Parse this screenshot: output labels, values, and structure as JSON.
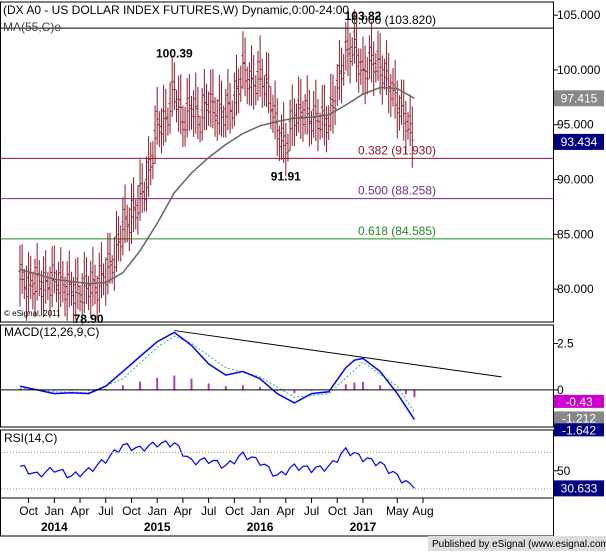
{
  "header": {
    "title": "(DX A0 - US DOLLAR INDEX FUTURES,W) Dynamic,0:00-24:00",
    "ma_label": "MA(55,C)e"
  },
  "colors": {
    "price_bars": "#8b1a2b",
    "ma_line": "#666666",
    "macd_line": "#0000ff",
    "signal_line": "#33aaaa",
    "histogram": "#aa44aa",
    "fib_0": "#000000",
    "fib_382": "#8b1a2b",
    "fib_500": "#7a2a8a",
    "fib_618": "#228b22",
    "rsi_line": "#0000ff",
    "trendline": "#000000"
  },
  "chart_data": [
    {
      "type": "ohlc",
      "name": "price",
      "series": [
        {
          "name": "DX A0 - US DOLLAR INDEX FUTURES",
          "points": [
            [
              "2013-09",
              81.2
            ],
            [
              "2013-10",
              80.2
            ],
            [
              "2013-11",
              80.8
            ],
            [
              "2013-12",
              80.2
            ],
            [
              "2014-01",
              81.0
            ],
            [
              "2014-02",
              80.2
            ],
            [
              "2014-03",
              80.0
            ],
            [
              "2014-04",
              79.6
            ],
            [
              "2014-05",
              80.4
            ],
            [
              "2014-06",
              80.2
            ],
            [
              "2014-07",
              81.5
            ],
            [
              "2014-08",
              82.8
            ],
            [
              "2014-09",
              85.8
            ],
            [
              "2014-10",
              86.5
            ],
            [
              "2014-11",
              88.3
            ],
            [
              "2014-12",
              90.3
            ],
            [
              "2015-01",
              95.0
            ],
            [
              "2015-02",
              95.3
            ],
            [
              "2015-03",
              98.4
            ],
            [
              "2015-04",
              95.2
            ],
            [
              "2015-05",
              96.8
            ],
            [
              "2015-06",
              95.5
            ],
            [
              "2015-07",
              97.3
            ],
            [
              "2015-08",
              96.0
            ],
            [
              "2015-09",
              96.2
            ],
            [
              "2015-10",
              97.0
            ],
            [
              "2015-11",
              100.2
            ],
            [
              "2015-12",
              98.6
            ],
            [
              "2016-01",
              99.5
            ],
            [
              "2016-02",
              98.2
            ],
            [
              "2016-03",
              94.6
            ],
            [
              "2016-04",
              93.0
            ],
            [
              "2016-05",
              95.9
            ],
            [
              "2016-06",
              96.2
            ],
            [
              "2016-07",
              95.6
            ],
            [
              "2016-08",
              95.5
            ],
            [
              "2016-09",
              95.4
            ],
            [
              "2016-10",
              98.4
            ],
            [
              "2016-11",
              101.5
            ],
            [
              "2016-12",
              102.2
            ],
            [
              "2017-01",
              99.5
            ],
            [
              "2017-02",
              101.0
            ],
            [
              "2017-03",
              100.3
            ],
            [
              "2017-04",
              99.0
            ],
            [
              "2017-05",
              97.0
            ],
            [
              "2017-06",
              95.6
            ],
            [
              "2017-07",
              93.4
            ]
          ]
        },
        {
          "name": "MA(55,C)e",
          "points": [
            [
              "2013-09",
              81.8
            ],
            [
              "2014-01",
              80.9
            ],
            [
              "2014-05",
              80.5
            ],
            [
              "2014-07",
              80.6
            ],
            [
              "2014-09",
              81.5
            ],
            [
              "2014-11",
              83.5
            ],
            [
              "2015-01",
              86.0
            ],
            [
              "2015-03",
              88.8
            ],
            [
              "2015-05",
              90.6
            ],
            [
              "2015-07",
              92.0
            ],
            [
              "2015-09",
              93.2
            ],
            [
              "2015-11",
              94.2
            ],
            [
              "2016-01",
              94.9
            ],
            [
              "2016-03",
              95.3
            ],
            [
              "2016-05",
              95.6
            ],
            [
              "2016-07",
              95.7
            ],
            [
              "2016-09",
              95.9
            ],
            [
              "2016-11",
              96.8
            ],
            [
              "2017-01",
              97.8
            ],
            [
              "2017-03",
              98.4
            ],
            [
              "2017-05",
              98.3
            ],
            [
              "2017-07",
              97.4
            ]
          ]
        }
      ],
      "ylim": [
        77.0,
        106.2
      ],
      "y_ticks": [
        80.0,
        85.0,
        90.0,
        95.0,
        100.0,
        105.0
      ],
      "y_tick_labels": [
        "80.000",
        "85.000",
        "90.000",
        "95.000",
        "100.000",
        "105.000"
      ],
      "last_values": {
        "ma": "97.415",
        "close": "93.434"
      },
      "fib_levels": [
        {
          "label": "0.000 (103.820)",
          "value": 103.82,
          "color": "#000000"
        },
        {
          "label": "0.382 (91.930)",
          "value": 91.93,
          "color": "#8b1a2b"
        },
        {
          "label": "0.500 (88.258)",
          "value": 88.258,
          "color": "#7a2a8a"
        },
        {
          "label": "0.618 (84.585)",
          "value": 84.585,
          "color": "#228b22"
        }
      ],
      "annotations": [
        {
          "text": "100.39",
          "x": "2015-03",
          "y": 100.39
        },
        {
          "text": "103.82",
          "x": "2017-01",
          "y": 103.82
        },
        {
          "text": "91.91",
          "x": "2016-04",
          "y": 91.91
        },
        {
          "text": "78.90",
          "x": "2014-05",
          "y": 78.9
        }
      ],
      "credit": "© eSignal, 2011"
    },
    {
      "type": "line",
      "name": "MACD(12,26,9,C)",
      "series": [
        {
          "name": "MACD",
          "points": [
            [
              "2013-09",
              0.2
            ],
            [
              "2013-11",
              0.0
            ],
            [
              "2014-01",
              -0.2
            ],
            [
              "2014-03",
              -0.15
            ],
            [
              "2014-05",
              -0.2
            ],
            [
              "2014-07",
              0.2
            ],
            [
              "2014-09",
              1.0
            ],
            [
              "2014-11",
              1.8
            ],
            [
              "2015-01",
              2.6
            ],
            [
              "2015-03",
              3.1
            ],
            [
              "2015-05",
              2.4
            ],
            [
              "2015-07",
              1.4
            ],
            [
              "2015-09",
              0.8
            ],
            [
              "2015-11",
              1.0
            ],
            [
              "2016-01",
              0.6
            ],
            [
              "2016-03",
              -0.2
            ],
            [
              "2016-05",
              -0.7
            ],
            [
              "2016-07",
              -0.2
            ],
            [
              "2016-09",
              -0.1
            ],
            [
              "2016-11",
              1.2
            ],
            [
              "2016-12",
              1.6
            ],
            [
              "2017-01",
              1.7
            ],
            [
              "2017-03",
              1.0
            ],
            [
              "2017-05",
              -0.2
            ],
            [
              "2017-06",
              -0.9
            ],
            [
              "2017-07",
              -1.6
            ]
          ]
        },
        {
          "name": "Signal",
          "points": [
            [
              "2013-09",
              0.1
            ],
            [
              "2014-01",
              -0.1
            ],
            [
              "2014-05",
              -0.15
            ],
            [
              "2014-09",
              0.6
            ],
            [
              "2015-01",
              2.3
            ],
            [
              "2015-03",
              2.9
            ],
            [
              "2015-05",
              2.5
            ],
            [
              "2015-09",
              1.2
            ],
            [
              "2016-01",
              0.7
            ],
            [
              "2016-05",
              -0.4
            ],
            [
              "2016-09",
              -0.2
            ],
            [
              "2017-01",
              1.5
            ],
            [
              "2017-05",
              0.2
            ],
            [
              "2017-07",
              -1.2
            ]
          ]
        }
      ],
      "ylim": [
        -2.0,
        3.5
      ],
      "y_ticks": [
        0,
        2.5
      ],
      "y_tick_labels": [
        "0",
        "2.5"
      ],
      "trendline": {
        "start": [
          "2015-03",
          3.2
        ],
        "end": [
          "2017-09",
          0.7
        ]
      },
      "last_values": {
        "histogram": "-0.43",
        "signal": "-1.212",
        "macd": "-1.642"
      }
    },
    {
      "type": "line",
      "name": "RSI(14,C)",
      "series": [
        {
          "name": "RSI",
          "points": [
            [
              "2013-09",
              55
            ],
            [
              "2013-11",
              45
            ],
            [
              "2014-01",
              52
            ],
            [
              "2014-03",
              44
            ],
            [
              "2014-05",
              50
            ],
            [
              "2014-07",
              62
            ],
            [
              "2014-09",
              78
            ],
            [
              "2014-11",
              74
            ],
            [
              "2015-01",
              80
            ],
            [
              "2015-03",
              80
            ],
            [
              "2015-05",
              60
            ],
            [
              "2015-07",
              62
            ],
            [
              "2015-09",
              55
            ],
            [
              "2015-11",
              68
            ],
            [
              "2016-01",
              60
            ],
            [
              "2016-03",
              44
            ],
            [
              "2016-05",
              55
            ],
            [
              "2016-07",
              52
            ],
            [
              "2016-09",
              54
            ],
            [
              "2016-11",
              73
            ],
            [
              "2017-01",
              64
            ],
            [
              "2017-03",
              58
            ],
            [
              "2017-05",
              44
            ],
            [
              "2017-07",
              30.6
            ]
          ]
        }
      ],
      "ylim": [
        20,
        95
      ],
      "y_ticks": [
        50
      ],
      "y_tick_labels": [
        "50"
      ],
      "last_values": {
        "rsi": "30.633"
      }
    }
  ],
  "x_axis": {
    "months": [
      {
        "label": "Oct",
        "x": "2013-10"
      },
      {
        "label": "Jan",
        "x": "2014-01"
      },
      {
        "label": "Apr",
        "x": "2014-04"
      },
      {
        "label": "Jul",
        "x": "2014-07"
      },
      {
        "label": "Oct",
        "x": "2014-10"
      },
      {
        "label": "Jan",
        "x": "2015-01"
      },
      {
        "label": "Apr",
        "x": "2015-04"
      },
      {
        "label": "Jul",
        "x": "2015-07"
      },
      {
        "label": "Oct",
        "x": "2015-10"
      },
      {
        "label": "Jan",
        "x": "2016-01"
      },
      {
        "label": "Apr",
        "x": "2016-04"
      },
      {
        "label": "Jul",
        "x": "2016-07"
      },
      {
        "label": "Oct",
        "x": "2016-10"
      },
      {
        "label": "Jan",
        "x": "2017-01"
      },
      {
        "label": "May",
        "x": "2017-05"
      },
      {
        "label": "Aug",
        "x": "2017-08"
      }
    ],
    "years": [
      {
        "label": "2014",
        "x": "2014-01"
      },
      {
        "label": "2015",
        "x": "2015-01"
      },
      {
        "label": "2016",
        "x": "2016-01"
      },
      {
        "label": "2017",
        "x": "2017-01"
      }
    ]
  },
  "footer": {
    "publisher": "Published by eSignal (www.esignal.com)"
  }
}
